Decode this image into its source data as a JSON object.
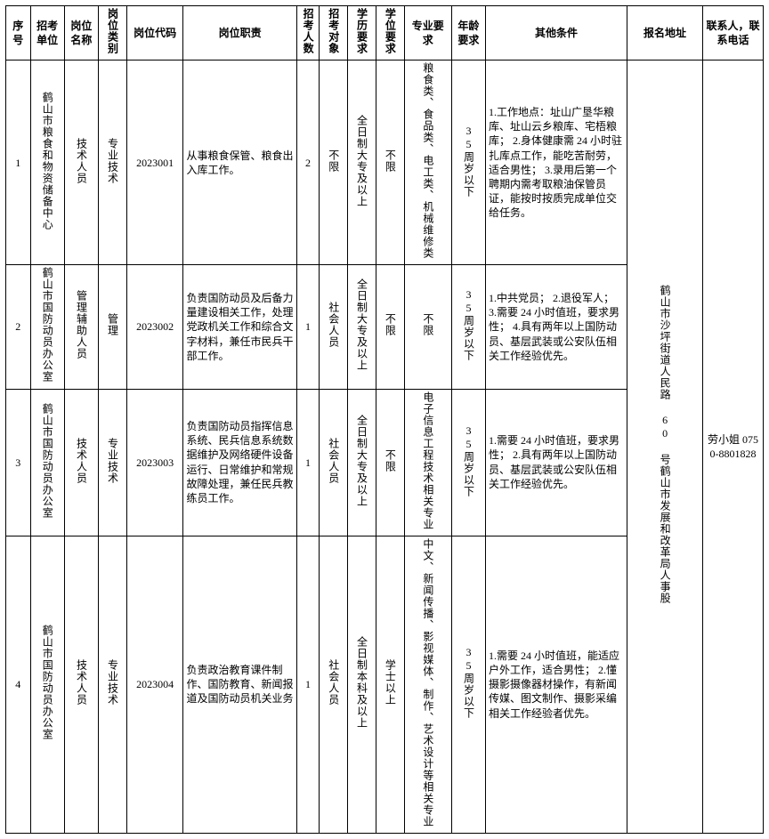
{
  "headers": {
    "h1": "序号",
    "h2": "招考单位",
    "h3": "岗位名称",
    "h4": "岗位类别",
    "h5": "岗位代码",
    "h6": "岗位职责",
    "h7": "招考人数",
    "h8": "招考对象",
    "h9": "学历要求",
    "h10": "学位要求",
    "h11": "专业要求",
    "h12": "年龄要求",
    "h13": "其他条件",
    "h14": "报名地址",
    "h15": "联系人，联系电话"
  },
  "rows": [
    {
      "idx": "1",
      "unit": "鹤山市粮食和物资储备中心",
      "post": "技术人员",
      "ptype": "专业技术",
      "code": "2023001",
      "duty": "从事粮食保管、粮食出入库工作。",
      "num": "2",
      "target": "不限",
      "edu": "全日制大专及以上",
      "degree": "不限",
      "major": "粮食类、食品类、电工类、机械维修类",
      "age": "35周岁以下",
      "other": "1.工作地点：址山广垦华粮库、址山云乡粮库、宅梧粮库；\n2.身体健康需 24 小时驻扎库点工作，能吃苦耐劳，适合男性；\n3.录用后第一个聘期内需考取粮油保管员证，能按时按质完成单位交给任务。"
    },
    {
      "idx": "2",
      "unit": "鹤山市国防动员办公室",
      "post": "管理辅助人员",
      "ptype": "管理",
      "code": "2023002",
      "duty": "负责国防动员及后备力量建设相关工作，处理党政机关工作和综合文字材料，兼任市民兵干部工作。",
      "num": "1",
      "target": "社会人员",
      "edu": "全日制大专及以上",
      "degree": "不限",
      "major": "不限",
      "age": "35周岁以下",
      "other": "1.中共党员；\n2.退役军人；\n3.需要 24 小时值班，要求男性；\n4.具有两年以上国防动员、基层武装或公安队伍相关工作经验优先。"
    },
    {
      "idx": "3",
      "unit": "鹤山市国防动员办公室",
      "post": "技术人员",
      "ptype": "专业技术",
      "code": "2023003",
      "duty": "负责国防动员指挥信息系统、民兵信息系统数据维护及网络硬件设备运行、日常维护和常规故障处理，兼任民兵教练员工作。",
      "num": "1",
      "target": "社会人员",
      "edu": "全日制大专及以上",
      "degree": "不限",
      "major": "电子信息工程技术相关专业",
      "age": "35周岁以下",
      "other": "1.需要 24 小时值班，要求男性；\n2.具有两年以上国防动员、基层武装或公安队伍相关工作经验优先。"
    },
    {
      "idx": "4",
      "unit": "鹤山市国防动员办公室",
      "post": "技术人员",
      "ptype": "专业技术",
      "code": "2023004",
      "duty": "负责政治教育课件制作、国防教育、新闻报道及国防动员机关业务",
      "num": "1",
      "target": "社会人员",
      "edu": "全日制本科及以上",
      "degree": "学士以上",
      "major": "中文、新闻传播、影视媒体、制作、艺术设计等相关专业",
      "age": "35周岁以下",
      "other": "1.需要 24 小时值班，能适应户外工作，适合男性；\n2.懂摄影摄像器材操作，有新闻传媒、图文制作、摄影采编相关工作经验者优先。"
    }
  ],
  "address": "鹤山市沙坪街道人民路 60 号鹤山市发展和改革局人事股",
  "contact": "劳小姐\n0750-8801828"
}
